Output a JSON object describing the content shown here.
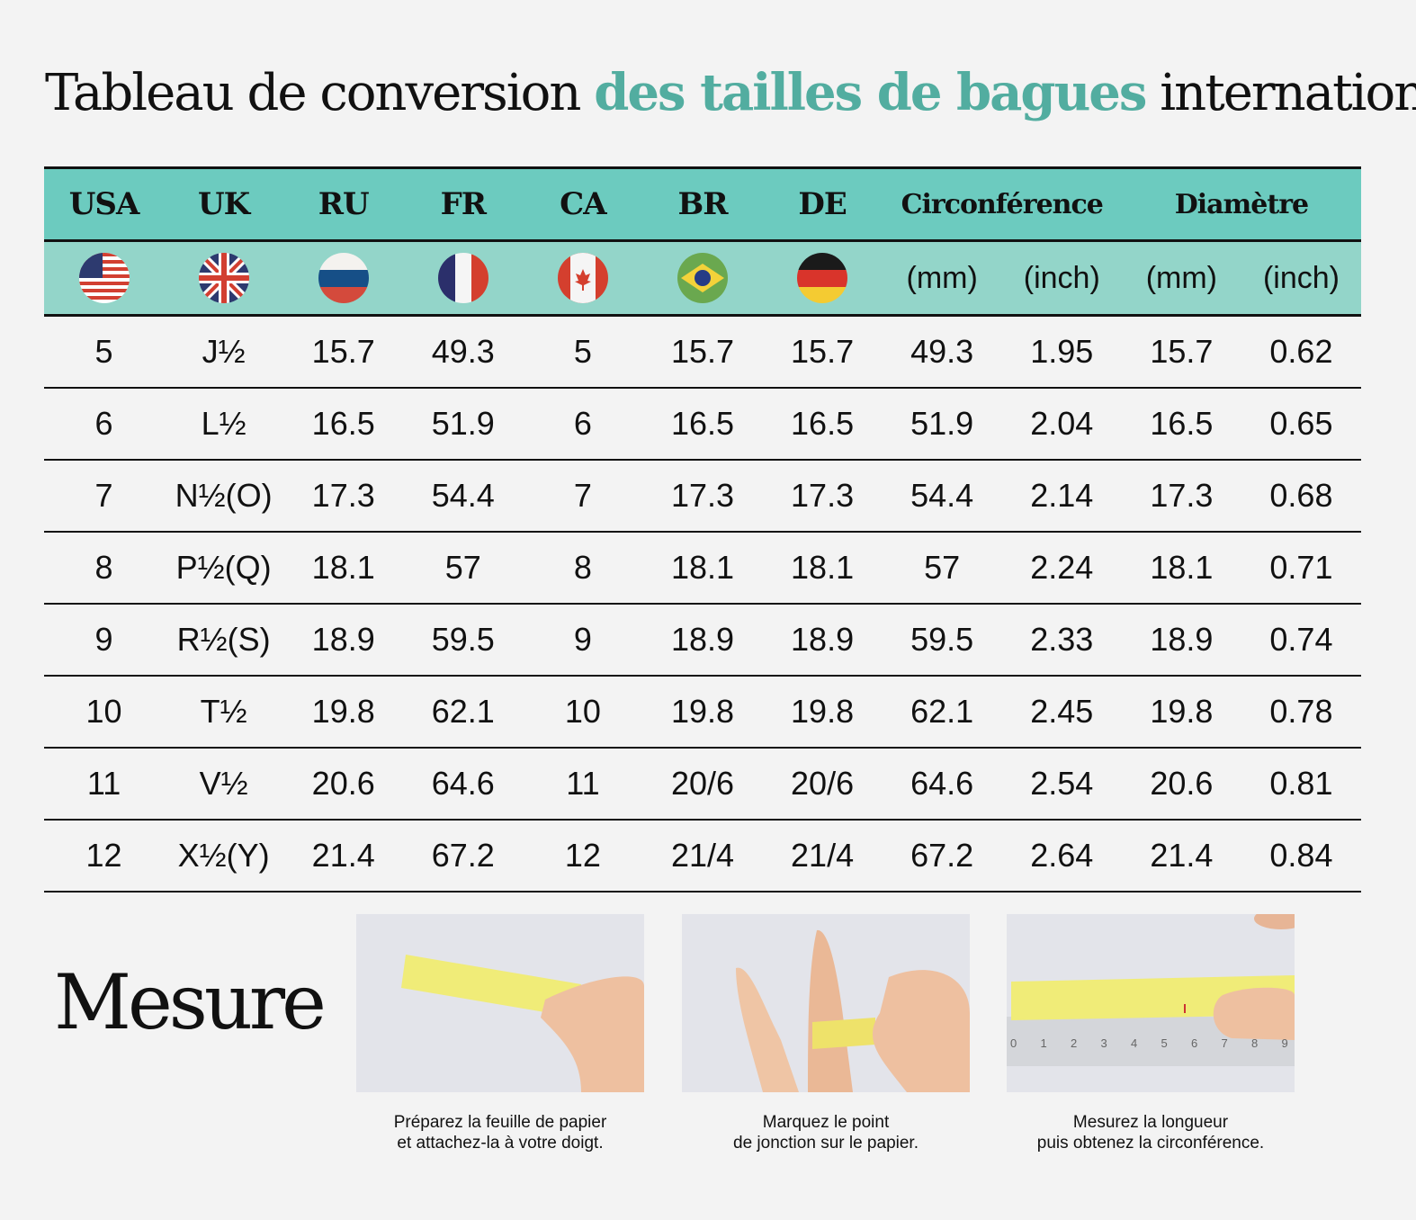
{
  "title": {
    "part1": "Tableau de conversion ",
    "accent": "des tailles de bagues",
    "part2": " international"
  },
  "colors": {
    "accent": "#52ada0",
    "header": "#6ccbbf",
    "subheader": "#93d5c9"
  },
  "headers": [
    "USA",
    "UK",
    "RU",
    "FR",
    "CA",
    "BR",
    "DE"
  ],
  "header_circ": "Circonférence",
  "header_diam": "Diamètre",
  "flags": [
    "us-flag-icon",
    "uk-flag-icon",
    "russia-flag-icon",
    "france-flag-icon",
    "canada-flag-icon",
    "brazil-flag-icon",
    "germany-flag-icon"
  ],
  "units": [
    "(mm)",
    "(inch)",
    "(mm)",
    "(inch)"
  ],
  "rows": [
    [
      "5",
      "J½",
      "15.7",
      "49.3",
      "5",
      "15.7",
      "15.7",
      "49.3",
      "1.95",
      "15.7",
      "0.62"
    ],
    [
      "6",
      "L½",
      "16.5",
      "51.9",
      "6",
      "16.5",
      "16.5",
      "51.9",
      "2.04",
      "16.5",
      "0.65"
    ],
    [
      "7",
      "N½(O)",
      "17.3",
      "54.4",
      "7",
      "17.3",
      "17.3",
      "54.4",
      "2.14",
      "17.3",
      "0.68"
    ],
    [
      "8",
      "P½(Q)",
      "18.1",
      "57",
      "8",
      "18.1",
      "18.1",
      "57",
      "2.24",
      "18.1",
      "0.71"
    ],
    [
      "9",
      "R½(S)",
      "18.9",
      "59.5",
      "9",
      "18.9",
      "18.9",
      "59.5",
      "2.33",
      "18.9",
      "0.74"
    ],
    [
      "10",
      "T½",
      "19.8",
      "62.1",
      "10",
      "19.8",
      "19.8",
      "62.1",
      "2.45",
      "19.8",
      "0.78"
    ],
    [
      "11",
      "V½",
      "20.6",
      "64.6",
      "11",
      "20/6",
      "20/6",
      "64.6",
      "2.54",
      "20.6",
      "0.81"
    ],
    [
      "12",
      "X½(Y)",
      "21.4",
      "67.2",
      "12",
      "21/4",
      "21/4",
      "67.2",
      "2.64",
      "21.4",
      "0.84"
    ]
  ],
  "mesure": "Mesure",
  "steps": [
    {
      "line1": "Préparez la feuille de papier",
      "line2": "et attachez-la à votre doigt."
    },
    {
      "line1": "Marquez le point",
      "line2": "de jonction sur le papier."
    },
    {
      "line1": "Mesurez la longueur",
      "line2": "puis obtenez la circonférence."
    }
  ],
  "ruler_marks": [
    "0",
    "1",
    "2",
    "3",
    "4",
    "5",
    "6",
    "7",
    "8",
    "9"
  ]
}
